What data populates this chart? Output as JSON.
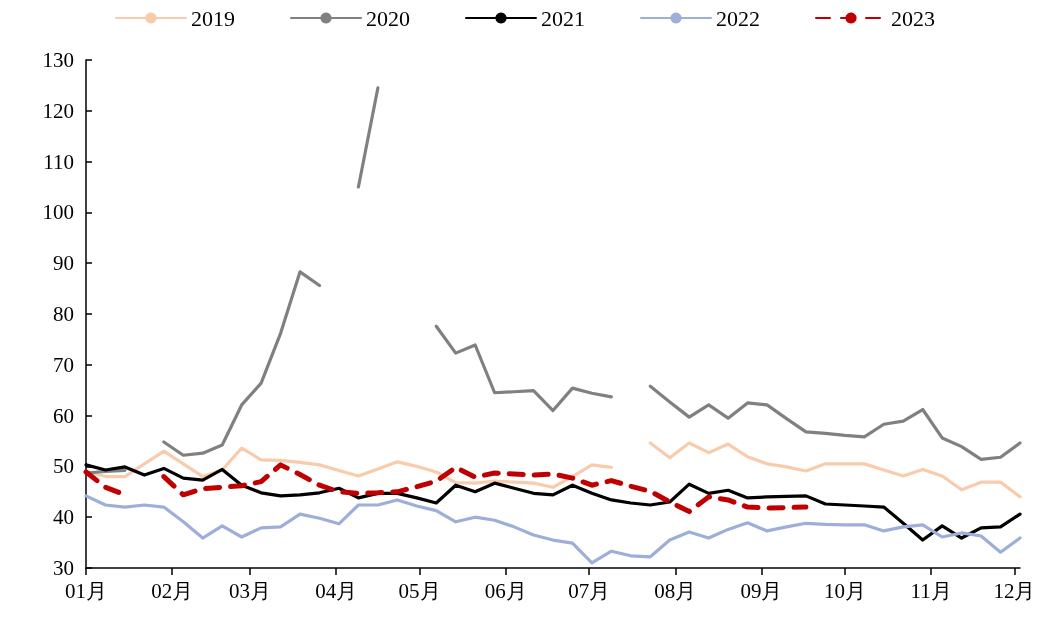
{
  "chart_data": {
    "type": "line",
    "legend": "top",
    "grid": false,
    "marker": "none",
    "line_style": "solid",
    "x": [
      "--01-01",
      "--01-08",
      "--01-15",
      "--01-22",
      "--01-29",
      "--02-05",
      "--02-12",
      "--02-19",
      "--02-26",
      "--03-05",
      "--03-12",
      "--03-19",
      "--03-26",
      "--04-02",
      "--04-09",
      "--04-16",
      "--04-23",
      "--04-30",
      "--05-07",
      "--05-14",
      "--05-21",
      "--05-28",
      "--06-04",
      "--06-11",
      "--06-18",
      "--06-25",
      "--07-02",
      "--07-09",
      "--07-16",
      "--07-23",
      "--07-30",
      "--08-06",
      "--08-13",
      "--08-20",
      "--08-27",
      "--09-03",
      "--09-10",
      "--09-17",
      "--09-24",
      "--10-01",
      "--10-08",
      "--10-15",
      "--10-22",
      "--10-29",
      "--11-05",
      "--11-12",
      "--11-19",
      "--11-26",
      "--12-03"
    ],
    "xlim": [
      "--01-01",
      "--12-03"
    ],
    "xticks": [
      {
        "value": "--01-01",
        "label": "01月"
      },
      {
        "value": "--02-01",
        "label": "02月"
      },
      {
        "value": "--03-01",
        "label": "03月"
      },
      {
        "value": "--04-01",
        "label": "04月"
      },
      {
        "value": "--05-01",
        "label": "05月"
      },
      {
        "value": "--06-01",
        "label": "06月"
      },
      {
        "value": "--07-01",
        "label": "07月"
      },
      {
        "value": "--08-01",
        "label": "08月"
      },
      {
        "value": "--09-01",
        "label": "09月"
      },
      {
        "value": "--10-01",
        "label": "10月"
      },
      {
        "value": "--11-01",
        "label": "11月"
      },
      {
        "value": "--12-01",
        "label": "12月"
      }
    ],
    "ylim": [
      30,
      130
    ],
    "yticks": [
      30,
      40,
      50,
      60,
      70,
      80,
      90,
      100,
      110,
      120,
      130
    ],
    "series": [
      {
        "name": "2019",
        "color": "#f8cbad",
        "values": [
          49,
          48,
          48,
          50.5,
          53,
          50.5,
          48,
          49.3,
          53.6,
          51.3,
          51.2,
          50.8,
          50.3,
          49.2,
          48.1,
          49.5,
          50.9,
          50,
          48.9,
          46.8,
          46.7,
          47.1,
          46.9,
          46.7,
          45.9,
          48,
          50.3,
          49.8,
          null,
          54.6,
          51.7,
          54.6,
          52.7,
          54.4,
          51.9,
          50.5,
          49.9,
          49.1,
          50.5,
          50.5,
          50.5,
          49.3,
          48.1,
          49.4,
          48.1,
          45.4,
          46.9,
          46.9,
          44
        ]
      },
      {
        "name": "2020",
        "color": "#808080",
        "values": [
          48.7,
          49,
          49.2,
          null,
          54.8,
          52.2,
          52.6,
          54.2,
          62.1,
          66.4,
          76.2,
          88.3,
          85.6,
          null,
          105,
          124.5,
          null,
          null,
          77.6,
          72.3,
          73.9,
          64.5,
          64.7,
          64.9,
          61,
          65.4,
          64.4,
          63.7,
          null,
          65.8,
          62.7,
          59.7,
          62.1,
          59.5,
          62.5,
          62.1,
          59.4,
          56.8,
          56.5,
          56.1,
          55.8,
          58.3,
          58.9,
          61.2,
          55.6,
          53.9,
          51.4,
          51.8,
          54.6
        ]
      },
      {
        "name": "2021",
        "color": "#000000",
        "values": [
          50.3,
          49.3,
          49.9,
          48.3,
          49.6,
          47.7,
          47.3,
          49.4,
          46.3,
          44.8,
          44.2,
          44.4,
          44.8,
          45.7,
          43.8,
          44.7,
          44.7,
          43.8,
          42.8,
          46.3,
          45,
          46.7,
          45.7,
          44.7,
          44.4,
          46.3,
          44.7,
          43.4,
          42.8,
          42.4,
          43,
          46.5,
          44.7,
          45.3,
          43.8,
          44,
          44.1,
          44.2,
          42.6,
          42.4,
          42.2,
          42,
          38.8,
          35.5,
          38.3,
          35.9,
          37.9,
          38.1,
          40.6
        ]
      },
      {
        "name": "2022",
        "color": "#9dafd9",
        "values": [
          44.2,
          42.4,
          42,
          42.4,
          42,
          39.1,
          35.9,
          38.3,
          36.1,
          37.9,
          38.1,
          40.6,
          39.8,
          38.7,
          42.4,
          42.4,
          43.4,
          42.2,
          41.3,
          39.1,
          40,
          39.4,
          38.1,
          36.5,
          35.5,
          34.9,
          31,
          33.3,
          32.4,
          32.2,
          35.5,
          37.1,
          35.9,
          37.6,
          38.9,
          37.3,
          38.1,
          38.8,
          38.6,
          38.5,
          38.5,
          37.3,
          38.1,
          38.5,
          36.1,
          36.9,
          36.3,
          33.1,
          35.9
        ]
      },
      {
        "name": "2023",
        "color": "#c00000",
        "line_style": "dashed",
        "values": [
          48.9,
          45.9,
          44.4,
          null,
          48,
          44.4,
          45.6,
          45.9,
          46.2,
          47,
          50.3,
          48.4,
          46.3,
          45,
          44.7,
          44.8,
          45,
          46,
          47.1,
          49.8,
          47.9,
          48.7,
          48.5,
          48.3,
          48.5,
          47.7,
          46.3,
          47.2,
          46.1,
          45.1,
          43,
          41.1,
          44,
          43.4,
          42,
          41.8,
          41.9,
          42,
          null,
          null,
          null,
          null,
          null,
          null,
          null,
          null,
          null,
          null,
          null
        ]
      }
    ]
  }
}
